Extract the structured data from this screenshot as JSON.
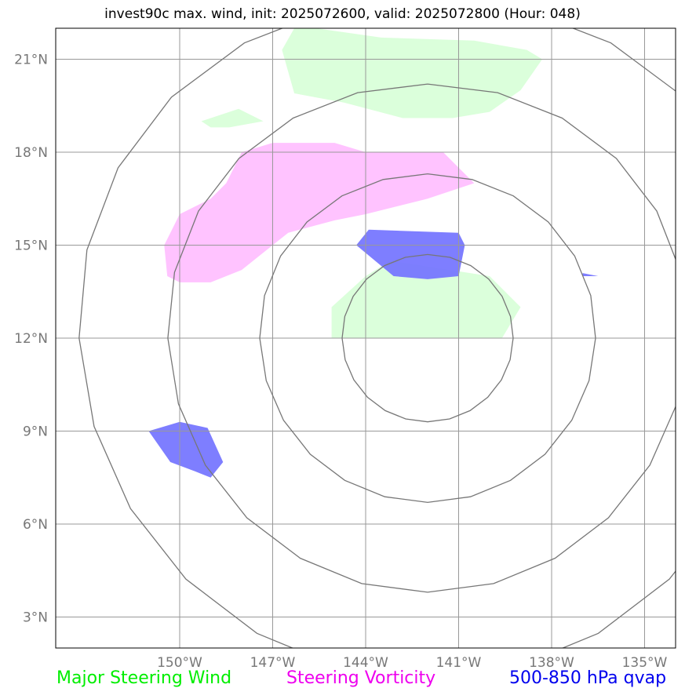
{
  "title": "invest90c max. wind, init: 2025072600, valid: 2025072800 (Hour: 048)",
  "map": {
    "lon_range": [
      -154,
      -134
    ],
    "lat_range": [
      2,
      22
    ],
    "lon_ticks": [
      {
        "value": -150,
        "label": "150°W"
      },
      {
        "value": -147,
        "label": "147°W"
      },
      {
        "value": -144,
        "label": "144°W"
      },
      {
        "value": -141,
        "label": "141°W"
      },
      {
        "value": -138,
        "label": "138°W"
      },
      {
        "value": -135,
        "label": "135°W"
      }
    ],
    "lat_ticks": [
      {
        "value": 21,
        "label": "21°N"
      },
      {
        "value": 18,
        "label": "18°N"
      },
      {
        "value": 15,
        "label": "15°N"
      },
      {
        "value": 12,
        "label": "12°N"
      },
      {
        "value": 9,
        "label": "9°N"
      },
      {
        "value": 6,
        "label": "6°N"
      },
      {
        "value": 3,
        "label": "3°N"
      }
    ],
    "center": {
      "lon": -142,
      "lat": 12
    },
    "ring_radii_deg_lat": [
      2.7,
      5.3,
      8.2,
      11.0
    ],
    "grid_color": "#999999",
    "ring_color": "#777777",
    "shapes": [
      {
        "layer": "steering_wind",
        "color": "#ccffcc",
        "points": [
          [
            -146.3,
            22
          ],
          [
            -145.6,
            22
          ],
          [
            -143.5,
            21.7
          ],
          [
            -140.5,
            21.6
          ],
          [
            -138.8,
            21.3
          ],
          [
            -138.3,
            21.0
          ],
          [
            -139,
            20.0
          ],
          [
            -140,
            19.3
          ],
          [
            -141.2,
            19.1
          ],
          [
            -142.8,
            19.1
          ],
          [
            -144.7,
            19.6
          ],
          [
            -146.3,
            19.9
          ],
          [
            -146.7,
            21.3
          ]
        ]
      },
      {
        "layer": "steering_wind",
        "color": "#ccffcc",
        "points": [
          [
            -149.3,
            19.0
          ],
          [
            -148.1,
            19.4
          ],
          [
            -147.3,
            19.0
          ],
          [
            -148.4,
            18.8
          ],
          [
            -149.0,
            18.8
          ]
        ]
      },
      {
        "layer": "steering_wind",
        "color": "#ccffcc",
        "points": [
          [
            -143.2,
            14.5
          ],
          [
            -140.0,
            14.0
          ],
          [
            -139.0,
            13.0
          ],
          [
            -139.6,
            12.0
          ],
          [
            -145.1,
            12.0
          ],
          [
            -145.1,
            13.0
          ],
          [
            -144.0,
            14.0
          ]
        ]
      },
      {
        "layer": "steering_vorticity",
        "color": "#ffaaff",
        "points": [
          [
            -150.5,
            15.0
          ],
          [
            -150.0,
            16.0
          ],
          [
            -149.0,
            16.5
          ],
          [
            -148.5,
            17.0
          ],
          [
            -148.0,
            18.0
          ],
          [
            -147.0,
            18.3
          ],
          [
            -145.0,
            18.3
          ],
          [
            -144.0,
            18.0
          ],
          [
            -141.5,
            18.0
          ],
          [
            -140.5,
            17.0
          ],
          [
            -142.0,
            16.5
          ],
          [
            -144.0,
            16.0
          ],
          [
            -145.0,
            15.8
          ],
          [
            -146.5,
            15.4
          ],
          [
            -147.0,
            15.0
          ],
          [
            -148.0,
            14.2
          ],
          [
            -149.0,
            13.8
          ],
          [
            -150.0,
            13.8
          ],
          [
            -150.4,
            14.0
          ]
        ]
      },
      {
        "layer": "qvap",
        "color": "#7777ff",
        "points": [
          [
            -144.3,
            15.0
          ],
          [
            -143.9,
            15.5
          ],
          [
            -141.0,
            15.4
          ],
          [
            -140.8,
            15.0
          ],
          [
            -141.0,
            14.0
          ],
          [
            -142.0,
            13.9
          ],
          [
            -143.1,
            14.0
          ]
        ]
      },
      {
        "layer": "qvap",
        "color": "#7777ff",
        "points": [
          [
            -137.0,
            14.1
          ],
          [
            -136.5,
            14.0
          ],
          [
            -137.0,
            14.0
          ]
        ]
      },
      {
        "layer": "qvap",
        "color": "#7777ff",
        "points": [
          [
            -151.0,
            9.0
          ],
          [
            -150.0,
            9.3
          ],
          [
            -149.1,
            9.1
          ],
          [
            -148.6,
            8.0
          ],
          [
            -149.0,
            7.5
          ],
          [
            -149.5,
            7.7
          ],
          [
            -150.3,
            8.0
          ]
        ]
      }
    ]
  },
  "legend": [
    {
      "label": "Major Steering Wind",
      "color": "#00ee00"
    },
    {
      "label": "Steering Vorticity",
      "color": "#ee00ee"
    },
    {
      "label": "500-850 hPa qvap",
      "color": "#0000ee"
    }
  ]
}
